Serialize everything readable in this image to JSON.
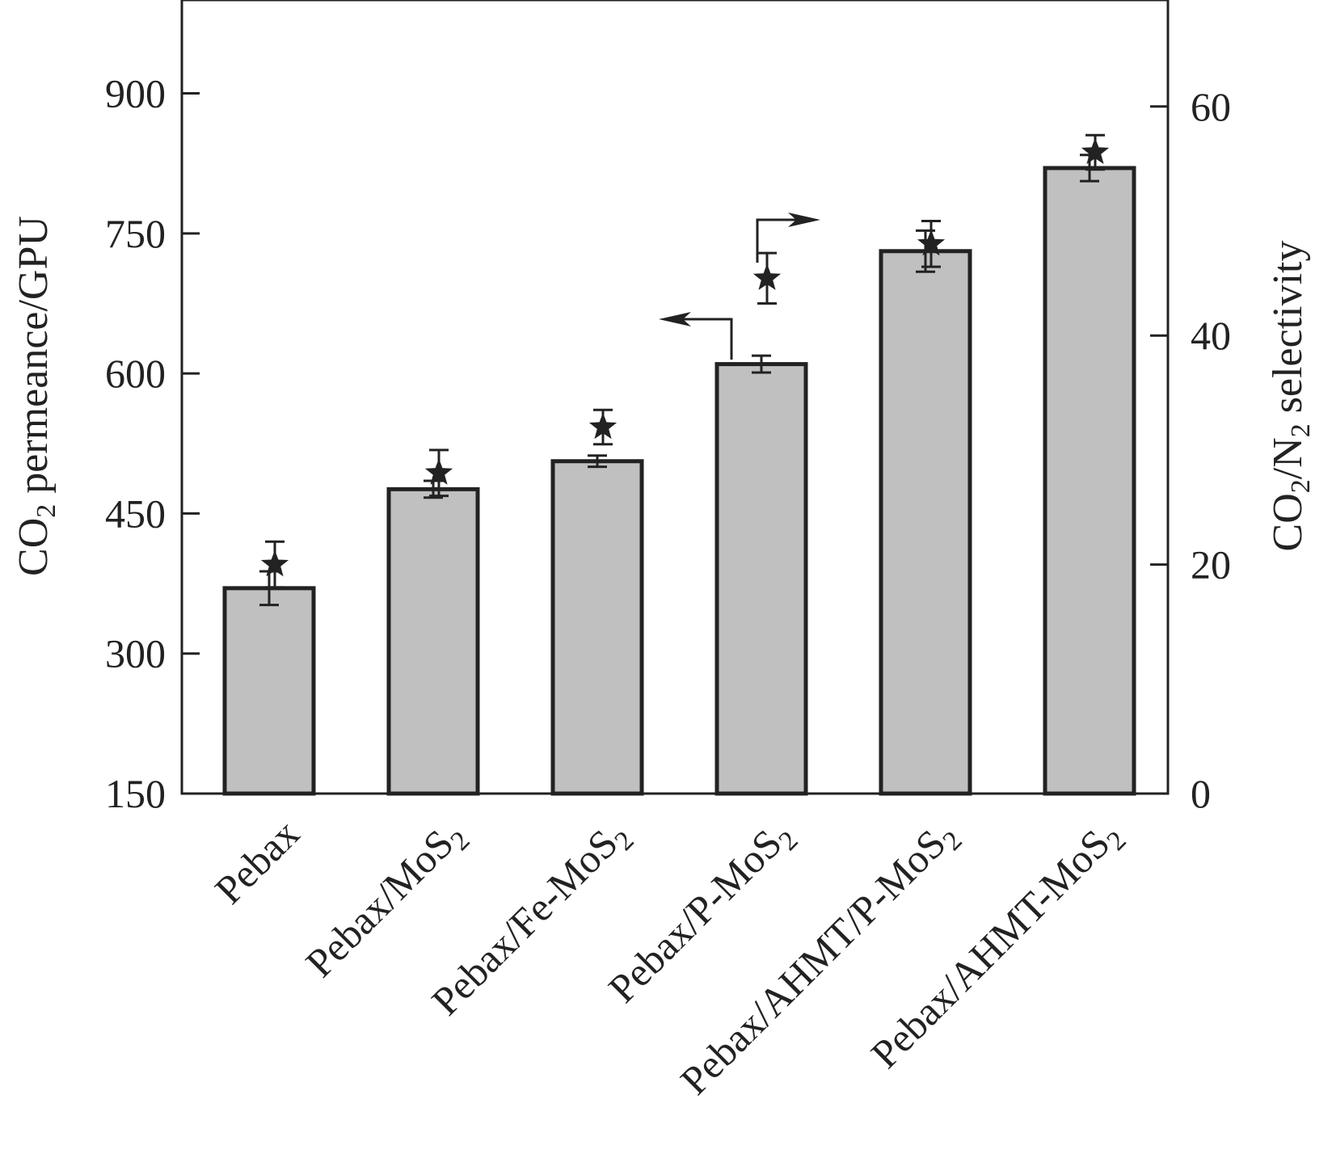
{
  "chart_data": {
    "type": "bar",
    "categories": [
      "Pebax",
      "Pebax/MoS2",
      "Pebax/Fe-MoS2",
      "Pebax/P-MoS2",
      "Pebax/AHMT/P-MoS2",
      "Pebax/AHMT-MoS2"
    ],
    "category_parts": [
      {
        "main": "Pebax",
        "sub": ""
      },
      {
        "main": "Pebax/MoS",
        "sub": "2"
      },
      {
        "main": "Pebax/Fe-MoS",
        "sub": "2"
      },
      {
        "main": "Pebax/P-MoS",
        "sub": "2"
      },
      {
        "main": "Pebax/AHMT/P-MoS",
        "sub": "2"
      },
      {
        "main": "Pebax/AHMT-MoS",
        "sub": "2"
      }
    ],
    "series": [
      {
        "axis": "left",
        "mark": "bar",
        "values": [
          370,
          476,
          506,
          610,
          731,
          820
        ],
        "errors": [
          18,
          9,
          6,
          9,
          22,
          14
        ]
      },
      {
        "axis": "right",
        "mark": "star",
        "values": [
          20,
          28,
          32,
          45,
          48,
          56
        ],
        "errors": [
          2,
          2,
          1.5,
          2.2,
          2,
          1.5
        ]
      }
    ],
    "left_axis": {
      "label": {
        "pre": "CO",
        "sub": "2",
        "post": " permeance/GPU"
      },
      "ylim": [
        150,
        1000
      ],
      "ticks": [
        150,
        300,
        450,
        600,
        750,
        900
      ]
    },
    "right_axis": {
      "label": {
        "pre": "CO",
        "sub1": "2",
        "mid": "/N",
        "sub2": "2",
        "post": " selectivity"
      },
      "ylim": [
        0,
        69.3
      ],
      "ticks": [
        0,
        20,
        40,
        60
      ]
    },
    "bar_color": "#c0c0c0",
    "line_color": "#222222",
    "annotations": [
      "left arrow points to CO2 permeance axis",
      "right arrow points to CO2/N2 selectivity axis"
    ]
  }
}
